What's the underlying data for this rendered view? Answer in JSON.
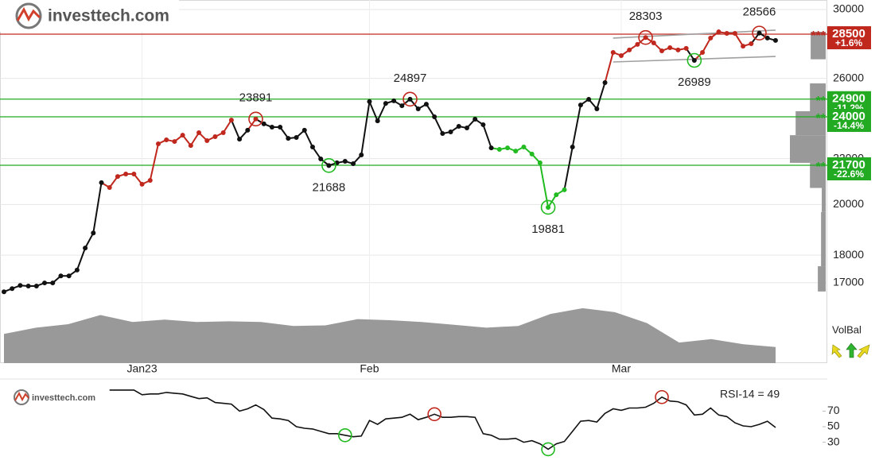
{
  "chart_data": [
    {
      "type": "line",
      "logo": "investtech.com",
      "log_scale": true,
      "grid": true,
      "categories": [
        null,
        null,
        null,
        null,
        null,
        null,
        null,
        null,
        null,
        null,
        null,
        null,
        null,
        null,
        null,
        null,
        null,
        "Jan23",
        null,
        null,
        null,
        null,
        null,
        null,
        null,
        null,
        null,
        null,
        null,
        null,
        null,
        null,
        null,
        null,
        null,
        null,
        null,
        null,
        null,
        null,
        null,
        null,
        null,
        null,
        null,
        "Feb",
        null,
        null,
        null,
        null,
        null,
        null,
        null,
        null,
        null,
        null,
        null,
        null,
        null,
        null,
        null,
        null,
        null,
        null,
        null,
        null,
        null,
        null,
        null,
        null,
        null,
        null,
        null,
        null,
        null,
        null,
        "Mar",
        null,
        null,
        null,
        null,
        null,
        null,
        null,
        null,
        null,
        null,
        null,
        null,
        null,
        null,
        null,
        null,
        null,
        null,
        null
      ],
      "values": [
        16680,
        16790,
        16900,
        16880,
        16880,
        16990,
        16990,
        17240,
        17240,
        17450,
        18270,
        18850,
        20930,
        20720,
        21200,
        21310,
        21310,
        20860,
        21030,
        22690,
        22880,
        22800,
        23100,
        22610,
        23220,
        22840,
        23030,
        23220,
        23840,
        22910,
        23340,
        23891,
        23650,
        23490,
        23490,
        22950,
        22990,
        23340,
        22540,
        21990,
        21688,
        21810,
        21880,
        21770,
        22170,
        24770,
        23800,
        24680,
        24810,
        24560,
        24897,
        24400,
        24640,
        24000,
        23180,
        23260,
        23530,
        23450,
        23880,
        23610,
        22500,
        22430,
        22500,
        22350,
        22540,
        22210,
        21810,
        19881,
        20410,
        20620,
        22540,
        24600,
        24890,
        24400,
        25770,
        27440,
        27260,
        27580,
        27900,
        28303,
        27990,
        27530,
        27710,
        27580,
        27670,
        26989,
        27440,
        28270,
        28640,
        28550,
        28550,
        27800,
        27940,
        28566,
        28270,
        28130
      ],
      "point_colors": [
        "k",
        "k",
        "k",
        "k",
        "k",
        "k",
        "k",
        "k",
        "k",
        "k",
        "k",
        "k",
        "k",
        "r",
        "r",
        "r",
        "r",
        "r",
        "r",
        "r",
        "r",
        "r",
        "r",
        "r",
        "r",
        "r",
        "r",
        "r",
        "r",
        "k",
        "k",
        "r",
        "k",
        "k",
        "k",
        "k",
        "k",
        "k",
        "k",
        "k",
        "k",
        "k",
        "k",
        "k",
        "k",
        "k",
        "k",
        "k",
        "k",
        "k",
        "k",
        "k",
        "k",
        "k",
        "k",
        "k",
        "k",
        "k",
        "k",
        "k",
        "k",
        "g",
        "g",
        "g",
        "g",
        "g",
        "g",
        "g",
        "g",
        "g",
        "k",
        "k",
        "k",
        "k",
        "k",
        "r",
        "r",
        "r",
        "r",
        "r",
        "r",
        "r",
        "r",
        "r",
        "r",
        "k",
        "r",
        "r",
        "r",
        "r",
        "r",
        "r",
        "r",
        "k",
        "k",
        "k"
      ],
      "palette": {
        "k": "#111111",
        "r": "#c0281e",
        "g": "#22bb22"
      },
      "ylim": [
        14380,
        30600
      ],
      "yticks": [
        17000,
        18000,
        20000,
        22000,
        24000,
        26000,
        30000
      ],
      "annotations": [
        {
          "index": 31,
          "color": "#c0281e",
          "side": "above"
        },
        {
          "index": 40,
          "color": "#22bb22",
          "side": "below"
        },
        {
          "index": 50,
          "color": "#c0281e",
          "side": "above"
        },
        {
          "index": 67,
          "color": "#22bb22",
          "side": "below"
        },
        {
          "index": 79,
          "color": "#c0281e",
          "side": "above"
        },
        {
          "index": 85,
          "color": "#22bb22",
          "side": "below"
        },
        {
          "index": 93,
          "color": "#c0281e",
          "side": "above"
        }
      ],
      "levels": [
        {
          "value": 28500,
          "change": "+1.6%",
          "stars": "***",
          "color": "#c0281e"
        },
        {
          "value": 24900,
          "change": "-11.2%",
          "stars": "**",
          "color": "#22aa22"
        },
        {
          "value": 24000,
          "change": "-14.4%",
          "stars": "**",
          "color": "#22aa22"
        },
        {
          "value": 21700,
          "change": "-22.6%",
          "stars": "**",
          "color": "#22aa22"
        }
      ],
      "channel": {
        "start_index": 75,
        "lines": [
          [
            28270,
            28740
          ],
          [
            26900,
            27210
          ]
        ],
        "color": "#a0a0a0"
      },
      "volume": {
        "values": [
          51,
          62,
          68,
          84,
          72,
          76,
          72,
          73,
          72,
          65,
          66,
          77,
          75,
          72,
          67,
          62,
          65,
          86,
          96,
          89,
          70,
          36,
          42,
          33,
          28
        ],
        "ylim": [
          0,
          100
        ],
        "color": "#999999"
      },
      "volume_profile": {
        "xlim": [
          0,
          100
        ],
        "color": "#999999",
        "bars": [
          {
            "low": 27050,
            "high": 28640,
            "value": 42
          },
          {
            "low": 24280,
            "high": 25730,
            "value": 44
          },
          {
            "low": 23100,
            "high": 24280,
            "value": 84
          },
          {
            "low": 21810,
            "high": 23100,
            "value": 100
          },
          {
            "low": 20700,
            "high": 21810,
            "value": 44
          },
          {
            "low": 19690,
            "high": 20700,
            "value": 11
          },
          {
            "low": 17590,
            "high": 19690,
            "value": 13
          },
          {
            "low": 16690,
            "high": 17590,
            "value": 22
          }
        ]
      },
      "volume_balance_label": "VolBal"
    },
    {
      "type": "line",
      "logo": "investtech.com",
      "label": "RSI-14 = 49",
      "color": "#111111",
      "values": [
        null,
        null,
        null,
        null,
        null,
        null,
        null,
        null,
        null,
        null,
        null,
        null,
        null,
        97,
        97,
        97,
        97,
        91,
        92,
        92,
        94,
        93,
        92,
        89,
        86,
        87,
        81,
        80,
        79,
        70,
        73,
        78,
        72,
        61,
        60,
        58,
        50,
        48,
        47,
        44,
        41,
        41,
        39,
        37,
        38,
        58,
        53,
        60,
        61,
        62,
        66,
        59,
        62,
        66,
        62,
        62,
        63,
        63,
        62,
        41,
        39,
        34,
        34,
        35,
        30,
        32,
        28,
        21,
        28,
        31,
        44,
        57,
        58,
        56,
        67,
        73,
        71,
        74,
        74,
        75,
        80,
        88,
        83,
        82,
        78,
        65,
        66,
        74,
        65,
        63,
        55,
        51,
        50,
        53,
        57,
        49
      ],
      "ylim": [
        0,
        100
      ],
      "yticks": [
        30,
        50,
        70
      ],
      "circles": [
        {
          "index": 42,
          "color": "#22bb22"
        },
        {
          "index": 53,
          "color": "#c0281e"
        },
        {
          "index": 67,
          "color": "#22bb22"
        },
        {
          "index": 81,
          "color": "#c0281e"
        }
      ]
    }
  ]
}
